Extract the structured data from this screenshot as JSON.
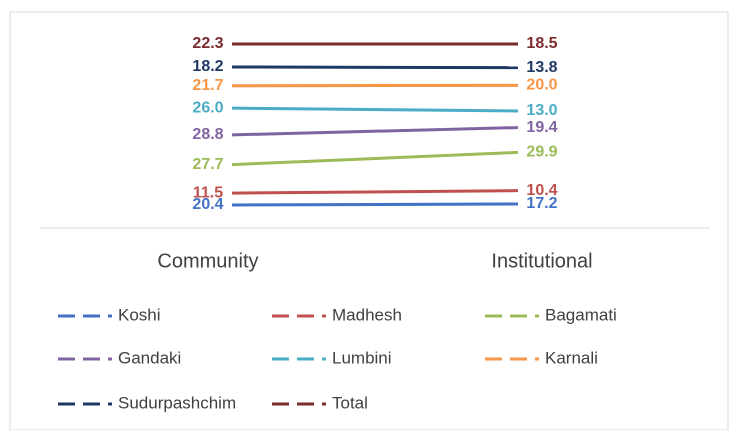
{
  "chart_data": {
    "type": "line",
    "stacked": "percent",
    "categories": [
      "Community",
      "Institutional"
    ],
    "series": [
      {
        "name": "Koshi",
        "color": "#4472c4",
        "values": [
          20.4,
          17.2
        ],
        "value_labels": [
          "20.4",
          "17.2"
        ]
      },
      {
        "name": "Madhesh",
        "color": "#c0504d",
        "values": [
          11.5,
          10.4
        ],
        "value_labels": [
          "11.5",
          "10.4"
        ]
      },
      {
        "name": "Bagamati",
        "color": "#9bbb59",
        "values": [
          27.7,
          29.9
        ],
        "value_labels": [
          "27.7",
          "29.9"
        ]
      },
      {
        "name": "Gandaki",
        "color": "#8064a2",
        "values": [
          28.8,
          19.4
        ],
        "value_labels": [
          "28.8",
          "19.4"
        ]
      },
      {
        "name": "Lumbini",
        "color": "#4bacc6",
        "values": [
          26.0,
          13.0
        ],
        "value_labels": [
          "26.0",
          "13.0"
        ]
      },
      {
        "name": "Karnali",
        "color": "#f79646",
        "values": [
          21.7,
          20.0
        ],
        "value_labels": [
          "21.7",
          "20.0"
        ]
      },
      {
        "name": "Sudurpashchim",
        "color": "#1f3864",
        "values": [
          18.2,
          13.8
        ],
        "value_labels": [
          "18.2",
          "13.8"
        ]
      },
      {
        "name": "Total",
        "color": "#7b2c2c",
        "values": [
          22.3,
          18.5
        ],
        "value_labels": [
          "22.3",
          "18.5"
        ]
      }
    ],
    "legend": "bottom"
  }
}
